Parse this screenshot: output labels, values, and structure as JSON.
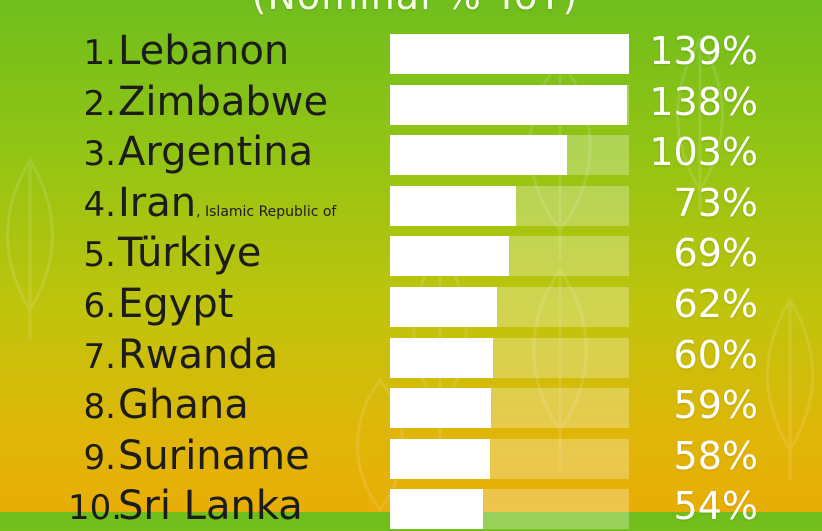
{
  "header": {
    "subtitle": "(Nominal % YoY)"
  },
  "colors": {
    "bar": "#ffffff",
    "track": "rgba(255,255,255,0.28)",
    "text": "#1c1c1c",
    "value_text": "#ffffff"
  },
  "icons": [
    "plant-pattern-icon"
  ],
  "chart_data": {
    "type": "bar",
    "orientation": "horizontal",
    "categories": [
      "Lebanon",
      "Zimbabwe",
      "Argentina",
      "Iran",
      "Türkiye",
      "Egypt",
      "Rwanda",
      "Ghana",
      "Suriname",
      "Sri Lanka"
    ],
    "ranks": [
      "1.",
      "2.",
      "3.",
      "4.",
      "5.",
      "6.",
      "7.",
      "8.",
      "9.",
      "10."
    ],
    "qualifiers": [
      "",
      "",
      "",
      ", Islamic Republic of",
      "",
      "",
      "",
      "",
      "",
      ""
    ],
    "values": [
      139,
      138,
      103,
      73,
      69,
      62,
      60,
      59,
      58,
      54
    ],
    "value_labels": [
      "139%",
      "138%",
      "103%",
      "73%",
      "69%",
      "62%",
      "60%",
      "59%",
      "58%",
      "54%"
    ],
    "xlim": [
      0,
      139
    ],
    "grid": false,
    "legend": "none"
  }
}
